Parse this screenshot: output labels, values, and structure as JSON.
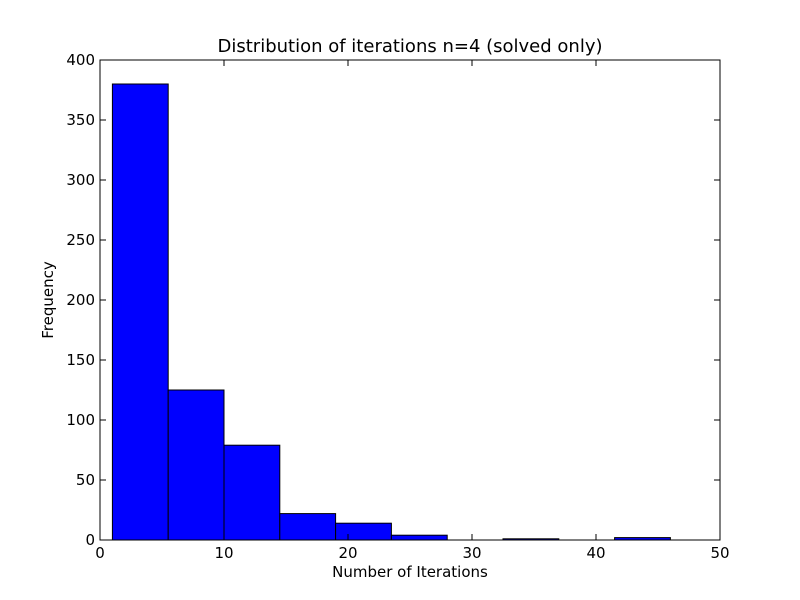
{
  "chart_data": {
    "type": "bar",
    "subtype": "histogram",
    "title": "Distribution of iterations n=4 (solved only)",
    "xlabel": "Number of Iterations",
    "ylabel": "Frequency",
    "xlim": [
      0,
      50
    ],
    "ylim": [
      0,
      400
    ],
    "xticks": [
      0,
      10,
      20,
      30,
      40,
      50
    ],
    "yticks": [
      0,
      50,
      100,
      150,
      200,
      250,
      300,
      350,
      400
    ],
    "bin_edges": [
      1.0,
      5.5,
      10.0,
      14.5,
      19.0,
      23.5,
      28.0,
      32.5,
      37.0,
      41.5,
      46.0
    ],
    "values": [
      380,
      125,
      79,
      22,
      14,
      4,
      0,
      1,
      0,
      2
    ],
    "bar_color": "#0000ff",
    "edge_color": "#000000",
    "grid": false,
    "legend": "none"
  }
}
